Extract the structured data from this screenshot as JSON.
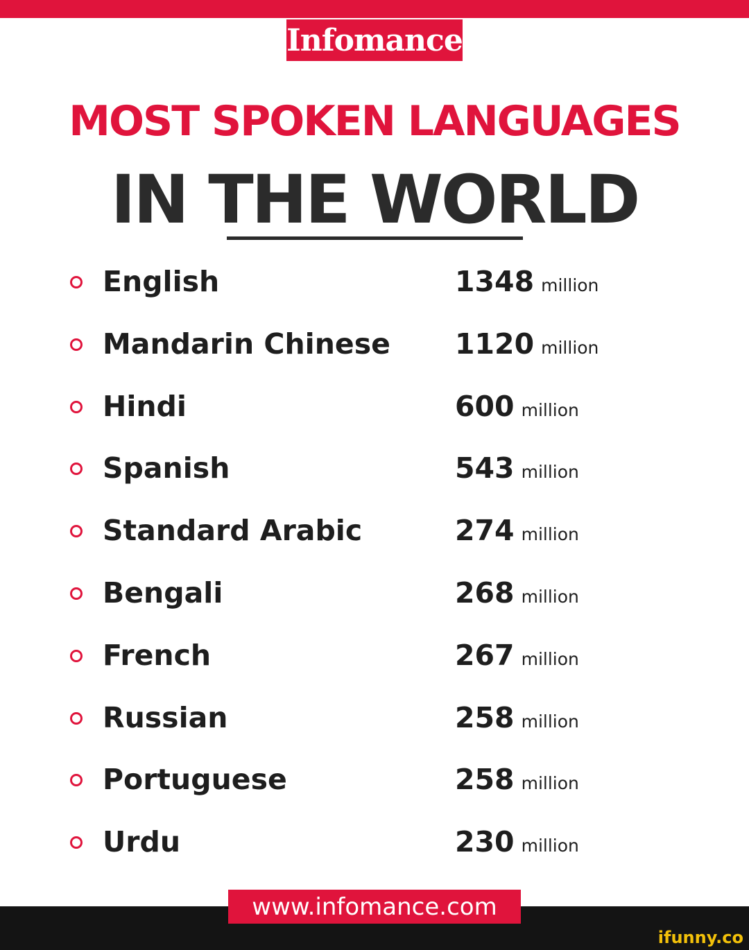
{
  "brand": "Infomance",
  "title_line1": "MOST SPOKEN LANGUAGES",
  "title_line2": "IN THE WORLD",
  "languages": [
    {
      "name": "English",
      "count": "1348",
      "unit": "million"
    },
    {
      "name": "Mandarin Chinese",
      "count": "1120",
      "unit": "million"
    },
    {
      "name": "Hindi",
      "count": "600",
      "unit": "million"
    },
    {
      "name": "Spanish",
      "count": "543",
      "unit": "million"
    },
    {
      "name": "Standard Arabic",
      "count": "274",
      "unit": "million"
    },
    {
      "name": "Bengali",
      "count": "268",
      "unit": "million"
    },
    {
      "name": "French",
      "count": "267",
      "unit": "million"
    },
    {
      "name": "Russian",
      "count": "258",
      "unit": "million"
    },
    {
      "name": "Portuguese",
      "count": "258",
      "unit": "million"
    },
    {
      "name": "Urdu",
      "count": "230",
      "unit": "million"
    }
  ],
  "website": "www.infomance.com",
  "watermark": "ifunny.co",
  "colors": {
    "accent": "#e0143c",
    "text": "#1e1e1e",
    "footer": "#141414",
    "watermark": "#f3c10a"
  }
}
